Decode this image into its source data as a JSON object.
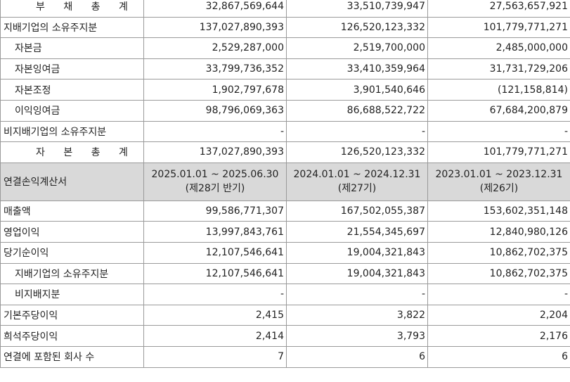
{
  "balance_rows": [
    {
      "label": "부 채 총 계",
      "style": "spaced",
      "values": [
        "32,867,569,644",
        "33,510,739,947",
        "27,563,657,921"
      ]
    },
    {
      "label": "지배기업의 소유주지분",
      "style": "",
      "values": [
        "137,027,890,393",
        "126,520,123,332",
        "101,779,771,271"
      ]
    },
    {
      "label": "자본금",
      "style": "indent",
      "values": [
        "2,529,287,000",
        "2,519,700,000",
        "2,485,000,000"
      ]
    },
    {
      "label": "자본잉여금",
      "style": "indent",
      "values": [
        "33,799,736,352",
        "33,410,359,964",
        "31,731,729,206"
      ]
    },
    {
      "label": "자본조정",
      "style": "indent",
      "values": [
        "1,902,797,678",
        "3,901,540,646",
        "(121,158,814)"
      ]
    },
    {
      "label": "이익잉여금",
      "style": "indent",
      "values": [
        "98,796,069,363",
        "86,688,522,722",
        "67,684,200,879"
      ]
    },
    {
      "label": "비지배기업의 소유주지분",
      "style": "",
      "values": [
        "-",
        "-",
        "-"
      ]
    },
    {
      "label": "자 본 총 계",
      "style": "spaced",
      "values": [
        "137,027,890,393",
        "126,520,123,332",
        "101,779,771,271"
      ]
    }
  ],
  "income_header": {
    "label": "연결손익계산서",
    "periods": [
      {
        "range": "2025.01.01 ~ 2025.06.30",
        "term": "(제28기 반기)"
      },
      {
        "range": "2024.01.01 ~ 2024.12.31",
        "term": "(제27기)"
      },
      {
        "range": "2023.01.01 ~ 2023.12.31",
        "term": "(제26기)"
      }
    ]
  },
  "income_rows": [
    {
      "label": "매출액",
      "style": "",
      "values": [
        "99,586,771,307",
        "167,502,055,387",
        "153,602,351,148"
      ]
    },
    {
      "label": "영업이익",
      "style": "",
      "values": [
        "13,997,843,761",
        "21,554,345,697",
        "12,840,980,126"
      ]
    },
    {
      "label": "당기순이익",
      "style": "",
      "values": [
        "12,107,546,641",
        "19,004,321,843",
        "10,862,702,375"
      ]
    },
    {
      "label": "지배기업의 소유주지분",
      "style": "indent",
      "values": [
        "12,107,546,641",
        "19,004,321,843",
        "10,862,702,375"
      ]
    },
    {
      "label": "비지배지분",
      "style": "indent",
      "values": [
        "-",
        "-",
        "-"
      ]
    },
    {
      "label": "기본주당이익",
      "style": "",
      "values": [
        "2,415",
        "3,822",
        "2,204"
      ]
    },
    {
      "label": "희석주당이익",
      "style": "",
      "values": [
        "2,414",
        "3,793",
        "2,176"
      ]
    },
    {
      "label": "연결에 포함된 회사 수",
      "style": "",
      "values": [
        "7",
        "6",
        "6"
      ]
    }
  ]
}
